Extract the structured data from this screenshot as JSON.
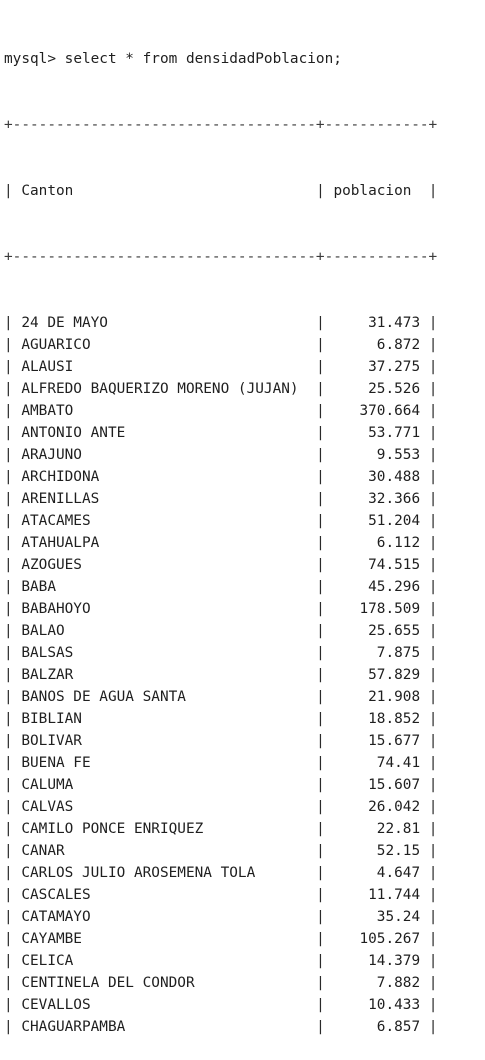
{
  "prompt": "mysql>",
  "command": "select * from densidadPoblacion;",
  "border": "+-----------------------------------+------------+",
  "columns": [
    "Canton",
    "poblacion"
  ],
  "rows": [
    {
      "canton": "24 DE MAYO",
      "poblacion": "31.473"
    },
    {
      "canton": "AGUARICO",
      "poblacion": "6.872"
    },
    {
      "canton": "ALAUSI",
      "poblacion": "37.275"
    },
    {
      "canton": "ALFREDO BAQUERIZO MORENO (JUJAN)",
      "poblacion": "25.526"
    },
    {
      "canton": "AMBATO",
      "poblacion": "370.664"
    },
    {
      "canton": "ANTONIO ANTE",
      "poblacion": "53.771"
    },
    {
      "canton": "ARAJUNO",
      "poblacion": "9.553"
    },
    {
      "canton": "ARCHIDONA",
      "poblacion": "30.488"
    },
    {
      "canton": "ARENILLAS",
      "poblacion": "32.366"
    },
    {
      "canton": "ATACAMES",
      "poblacion": "51.204"
    },
    {
      "canton": "ATAHUALPA",
      "poblacion": "6.112"
    },
    {
      "canton": "AZOGUES",
      "poblacion": "74.515"
    },
    {
      "canton": "BABA",
      "poblacion": "45.296"
    },
    {
      "canton": "BABAHOYO",
      "poblacion": "178.509"
    },
    {
      "canton": "BALAO",
      "poblacion": "25.655"
    },
    {
      "canton": "BALSAS",
      "poblacion": "7.875"
    },
    {
      "canton": "BALZAR",
      "poblacion": "57.829"
    },
    {
      "canton": "BANOS DE AGUA SANTA",
      "poblacion": "21.908"
    },
    {
      "canton": "BIBLIAN",
      "poblacion": "18.852"
    },
    {
      "canton": "BOLIVAR",
      "poblacion": "15.677"
    },
    {
      "canton": "BUENA FE",
      "poblacion": "74.41"
    },
    {
      "canton": "CALUMA",
      "poblacion": "15.607"
    },
    {
      "canton": "CALVAS",
      "poblacion": "26.042"
    },
    {
      "canton": "CAMILO PONCE ENRIQUEZ",
      "poblacion": "22.81"
    },
    {
      "canton": "CANAR",
      "poblacion": "52.15"
    },
    {
      "canton": "CARLOS JULIO AROSEMENA TOLA",
      "poblacion": "4.647"
    },
    {
      "canton": "CASCALES",
      "poblacion": "11.744"
    },
    {
      "canton": "CATAMAYO",
      "poblacion": "35.24"
    },
    {
      "canton": "CAYAMBE",
      "poblacion": "105.267"
    },
    {
      "canton": "CELICA",
      "poblacion": "14.379"
    },
    {
      "canton": "CENTINELA DEL CONDOR",
      "poblacion": "7.882"
    },
    {
      "canton": "CEVALLOS",
      "poblacion": "10.433"
    },
    {
      "canton": "CHAGUARPAMBA",
      "poblacion": "6.857"
    }
  ]
}
